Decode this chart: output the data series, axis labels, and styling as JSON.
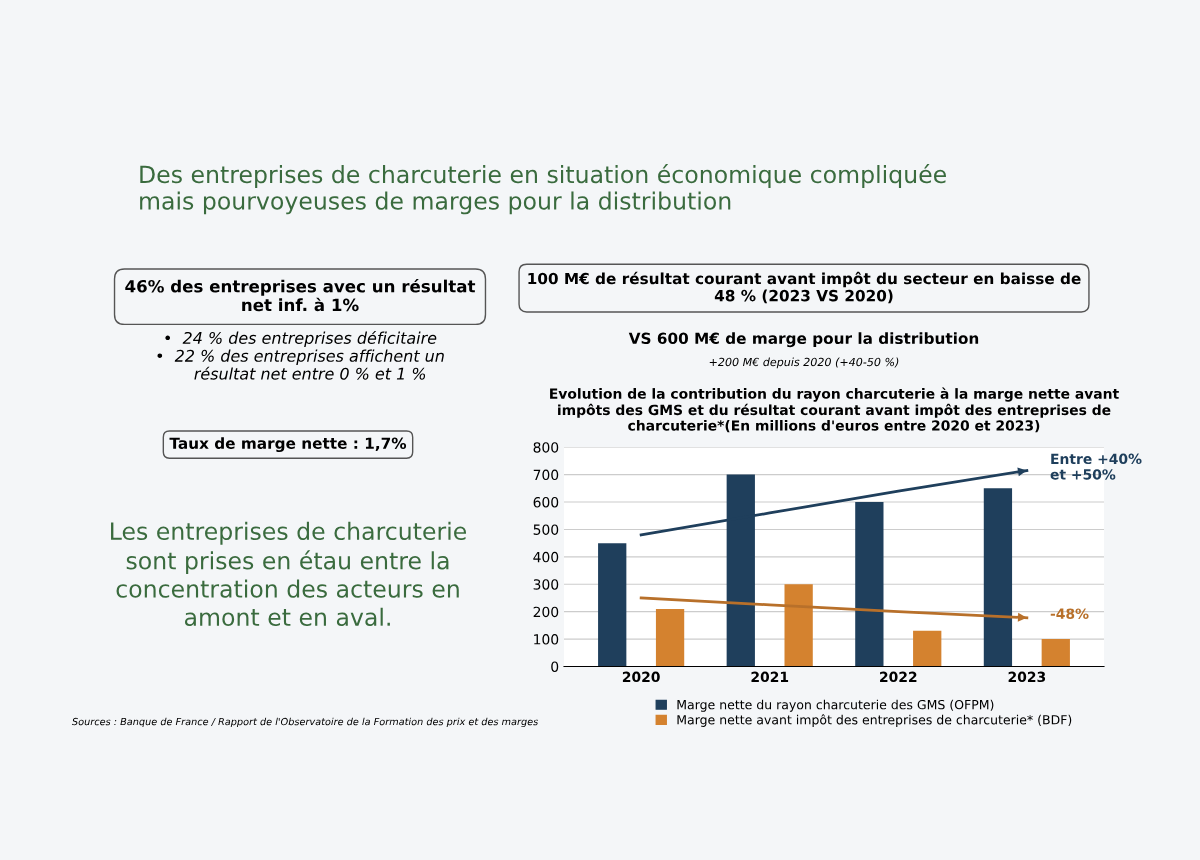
{
  "chart_data": {
    "type": "bar",
    "title": "Evolution de la contribution du rayon charcuterie à la marge nette avant\nimpôts des GMS et du résultat courant avant impôt des entreprises de\ncharcuterie*(En millions d'euros entre 2020 et 2023)",
    "categories": [
      "2020",
      "2021",
      "2022",
      "2023"
    ],
    "series": [
      {
        "name": "Marge nette du rayon charcuterie des GMS (OFPM)",
        "color": "#1f3f5c",
        "values": [
          450,
          700,
          600,
          650
        ]
      },
      {
        "name": "Marge nette avant impôt des entreprises de charcuterie* (BDF)",
        "color": "#d4822f",
        "values": [
          210,
          300,
          130,
          100
        ]
      },
      {
        "type": "line",
        "color": "#1f3f5c",
        "values": [
          480,
          560,
          640,
          715
        ]
      },
      {
        "type": "line",
        "color": "#b8702a",
        "values": [
          250,
          225,
          200,
          178
        ]
      }
    ],
    "ylim": [
      0,
      800
    ],
    "yticks": [
      0,
      100,
      200,
      300,
      400,
      500,
      600,
      700,
      800
    ],
    "grid": "y",
    "legend": "bottom",
    "annotations": [
      "Des entreprises de charcuterie en situation économique compliquée\nmais pourvoyeuses de marges pour la distribution",
      "46% des entreprises avec un résultat\nnet inf. à 1%",
      "•  24 % des entreprises déficitaire\n•  22 % des entreprises affichent un\n    résultat net entre 0 % et 1 %",
      "100 M€ de résultat courant avant impôt du secteur en baisse de\n48 % (2023 VS 2020)",
      "VS 600 M€ de marge pour la distribution",
      "+200 M€ depuis 2020 (+40-50 %)",
      "Taux de marge nette : 1,7%",
      "Les entreprises de charcuterie\nsont prises en étau entre la\nconcentration des acteurs en\namont et en aval.",
      "Sources : Banque de France / Rapport de l'Observatoire de la Formation des prix et des marges",
      "Entre +40%\net +50%",
      "-48%"
    ]
  }
}
